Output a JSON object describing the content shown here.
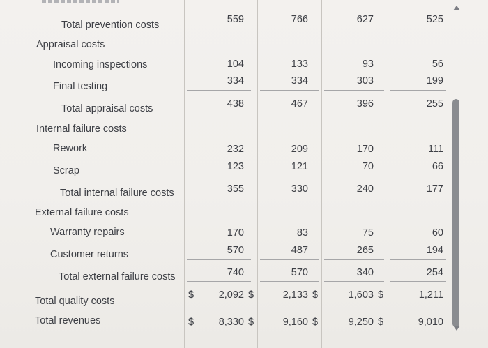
{
  "rows": {
    "total_prevention": {
      "label": "Total prevention costs",
      "values": [
        "559",
        "766",
        "627",
        "525"
      ]
    },
    "appraisal_header": {
      "label": "Appraisal costs"
    },
    "incoming_inspections": {
      "label": "Incoming inspections",
      "values": [
        "104",
        "133",
        "93",
        "56"
      ]
    },
    "final_testing": {
      "label": "Final testing",
      "values": [
        "334",
        "334",
        "303",
        "199"
      ]
    },
    "total_appraisal": {
      "label": "Total appraisal costs",
      "values": [
        "438",
        "467",
        "396",
        "255"
      ]
    },
    "internal_header": {
      "label": "Internal failure costs"
    },
    "rework": {
      "label": "Rework",
      "values": [
        "232",
        "209",
        "170",
        "111"
      ]
    },
    "scrap": {
      "label": "Scrap",
      "values": [
        "123",
        "121",
        "70",
        "66"
      ]
    },
    "total_internal": {
      "label": "Total internal failure costs",
      "values": [
        "355",
        "330",
        "240",
        "177"
      ]
    },
    "external_header": {
      "label": "External failure costs"
    },
    "warranty_repairs": {
      "label": "Warranty repairs",
      "values": [
        "170",
        "83",
        "75",
        "60"
      ]
    },
    "customer_returns": {
      "label": "Customer returns",
      "values": [
        "570",
        "487",
        "265",
        "194"
      ]
    },
    "total_external": {
      "label": "Total external failure costs",
      "values": [
        "740",
        "570",
        "340",
        "254"
      ]
    },
    "total_quality": {
      "label": "Total quality costs",
      "values": [
        "2,092",
        "2,133",
        "1,603",
        "1,211"
      ]
    },
    "total_revenues": {
      "label": "Total revenues",
      "values": [
        "8,330",
        "9,160",
        "9,250",
        "9,010"
      ]
    }
  },
  "currency_symbol": "$"
}
